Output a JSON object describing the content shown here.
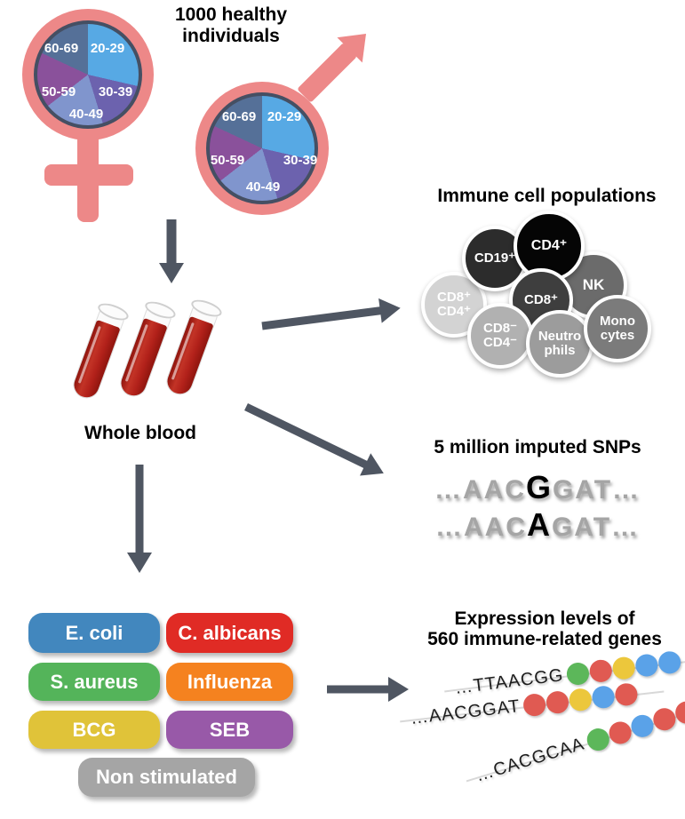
{
  "palette": {
    "salmon": "#ed8888",
    "arrow_gray": "#4f5662",
    "pie_border": "#454f63",
    "dot_green": "#5cb75a",
    "dot_red": "#e05a52",
    "dot_yellow": "#ecc73c",
    "dot_blue": "#5aa2e8"
  },
  "header": {
    "title": "1000 healthy\nindividuals"
  },
  "demographics": {
    "age_groups": [
      "20-29",
      "30-39",
      "40-49",
      "50-59",
      "60-69"
    ],
    "pie_slices": [
      {
        "label": "20-29",
        "color": "#57a9e4",
        "start": 0,
        "end": 103
      },
      {
        "label": "30-39",
        "color": "#6c62ae",
        "start": 103,
        "end": 163
      },
      {
        "label": "40-49",
        "color": "#8095cd",
        "start": 163,
        "end": 232
      },
      {
        "label": "50-59",
        "color": "#8a519b",
        "start": 232,
        "end": 295
      },
      {
        "label": "60-69",
        "color": "#557098",
        "start": 295,
        "end": 360
      }
    ]
  },
  "whole_blood": {
    "label": "Whole blood"
  },
  "immune_cells": {
    "title": "Immune cell populations",
    "cells": [
      {
        "label": "CD8⁺\nCD4⁺",
        "color": "#d3d3d3"
      },
      {
        "label": "CD19⁺",
        "color": "#2c2c2c"
      },
      {
        "label": "NK",
        "color": "#6b6b6b"
      },
      {
        "label": "CD4⁺",
        "color": "#050505"
      },
      {
        "label": "CD8⁺",
        "color": "#3e3e3e"
      },
      {
        "label": "CD8⁻\nCD4⁻",
        "color": "#b1b1b1"
      },
      {
        "label": "Neutro\nphils",
        "color": "#9c9c9c"
      },
      {
        "label": "Mono\ncytes",
        "color": "#7b7b7b"
      }
    ]
  },
  "snps": {
    "title": "5 million imputed SNPs",
    "sequences": [
      {
        "prefix": "…AAC",
        "variant": "G",
        "suffix": "GAT…"
      },
      {
        "prefix": "…AAC",
        "variant": "A",
        "suffix": "GAT…"
      }
    ]
  },
  "stimuli": {
    "items": [
      {
        "label": "E. coli",
        "color": "#4287be"
      },
      {
        "label": "C. albicans",
        "color": "#e02b25"
      },
      {
        "label": "S. aureus",
        "color": "#54b45a"
      },
      {
        "label": "Influenza",
        "color": "#f5821f"
      },
      {
        "label": "BCG",
        "color": "#e0c339"
      },
      {
        "label": "SEB",
        "color": "#9859a8"
      },
      {
        "label": "Non stimulated",
        "color": "#a5a5a5"
      }
    ]
  },
  "expression": {
    "title": "Expression levels of\n560 immune-related genes",
    "rows": [
      {
        "sequence": "…TTAACGG",
        "dots": [
          "green",
          "red",
          "yellow",
          "blue",
          "blue"
        ]
      },
      {
        "sequence": "…AACGGAT",
        "dots": [
          "red",
          "red",
          "yellow",
          "blue",
          "red"
        ]
      },
      {
        "sequence": "…CACGCAA",
        "dots": [
          "green",
          "red",
          "blue",
          "red",
          "red"
        ]
      }
    ]
  }
}
